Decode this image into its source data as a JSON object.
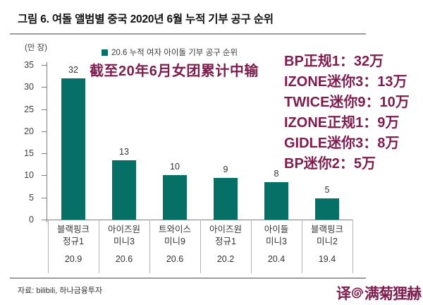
{
  "title": "그림 6. 여돌 앨범별 중국 2020년 6월 누적 기부 공구 순위",
  "legend_label": "20.6 누적 여자 아이돌 기부 공구 순위",
  "overlay": {
    "headline": "截至20年6月女团累计中输",
    "rank_list": [
      "BP正规1：32万",
      "IZONE迷你3：13万",
      "TWICE迷你9：10万",
      "IZONE正规1：9万",
      "GIDLE迷你3：8万",
      "BP迷你2：5万"
    ]
  },
  "source": "자료: bilibili, 하나금융투자",
  "watermark": {
    "prefix": "译",
    "name": "满菊狸赫",
    "swirl_icon": "swirl-icon"
  },
  "colors": {
    "bar": "#077066",
    "accent_red": "#7d1c4e",
    "axis_text": "#404040",
    "axis_line": "#808080",
    "cell_border": "#b3b3b3",
    "rule": "#9e9e9e"
  },
  "chart_data": {
    "type": "bar",
    "title": "그림 6. 여돌 앨범별 중국 2020년 6월 누적 기부 공구 순위",
    "ylabel": "(만 장)",
    "ylim": [
      0,
      35
    ],
    "yticks": [
      0,
      5,
      10,
      15,
      20,
      25,
      30,
      35
    ],
    "grid": false,
    "legend": [
      "20.6 누적 여자 아이돌 기부 공구 순위"
    ],
    "legend_position": "top",
    "categories": [
      {
        "name_line1": "블랙핑크",
        "name_line2": "정규1",
        "date": "20.9"
      },
      {
        "name_line1": "아이즈원",
        "name_line2": "미니3",
        "date": "20.6"
      },
      {
        "name_line1": "트와이스",
        "name_line2": "미니9",
        "date": "20.6"
      },
      {
        "name_line1": "아이즈원",
        "name_line2": "정규1",
        "date": "20.2"
      },
      {
        "name_line1": "아이들",
        "name_line2": "미니3",
        "date": "20.4"
      },
      {
        "name_line1": "블랙핑크",
        "name_line2": "미니2",
        "date": "19.4"
      }
    ],
    "values": [
      32,
      13,
      10,
      9,
      8,
      5
    ],
    "values_precise": [
      31.9,
      13.5,
      10.1,
      9.4,
      8.5,
      4.8
    ]
  }
}
